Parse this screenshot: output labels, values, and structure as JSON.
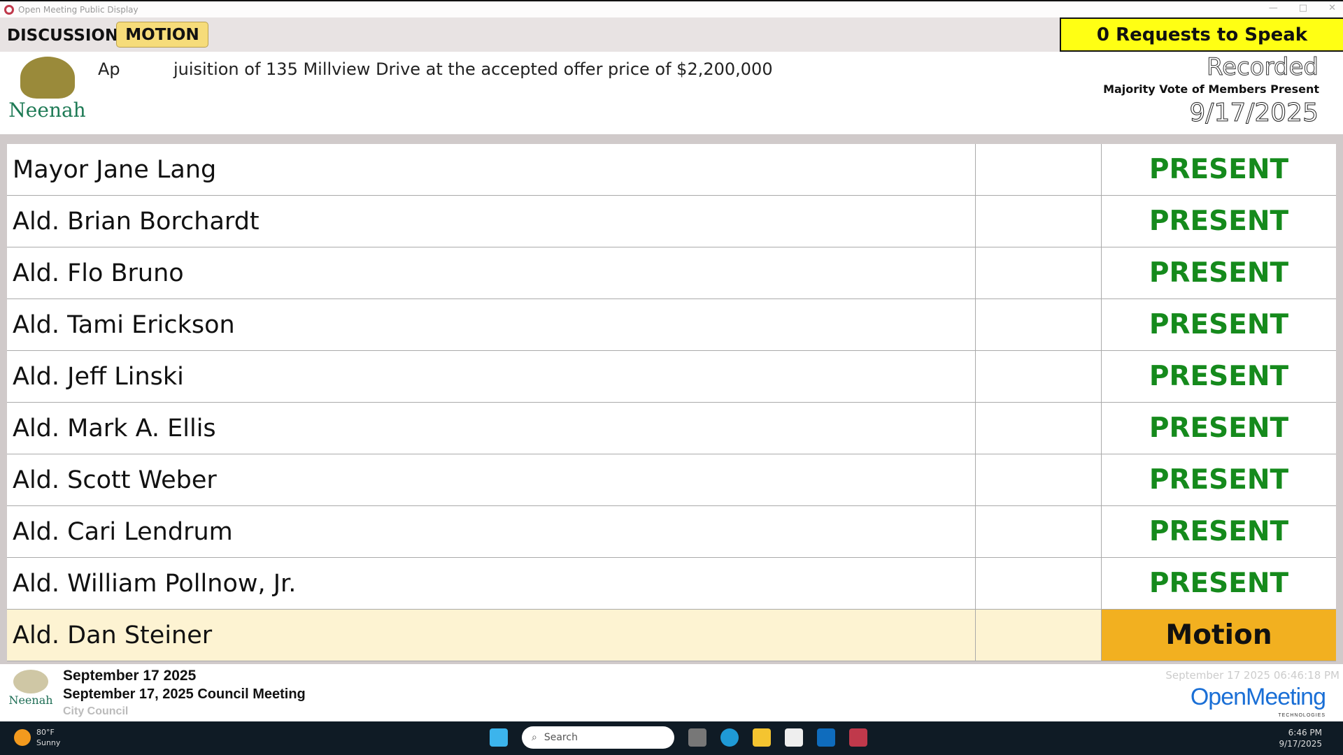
{
  "window": {
    "title": "Open Meeting Public Display"
  },
  "header": {
    "discussion_label": "DISCUSSION",
    "motion_label": "MOTION",
    "requests": "0 Requests to Speak",
    "agenda_item": "Ap          juisition of 135 Millview Drive at the accepted offer price of $2,200,000",
    "logo_text": "Neenah",
    "recorded": "Recorded",
    "vote_type": "Majority Vote of Members Present",
    "vote_date": "9/17/2025"
  },
  "members": [
    {
      "name": "Mayor Jane Lang",
      "status": "PRESENT"
    },
    {
      "name": "Ald. Brian Borchardt",
      "status": "PRESENT"
    },
    {
      "name": "Ald. Flo Bruno",
      "status": "PRESENT"
    },
    {
      "name": "Ald. Tami Erickson",
      "status": "PRESENT"
    },
    {
      "name": "Ald. Jeff Linski",
      "status": "PRESENT"
    },
    {
      "name": "Ald. Mark A. Ellis",
      "status": "PRESENT"
    },
    {
      "name": "Ald. Scott Weber",
      "status": "PRESENT"
    },
    {
      "name": "Ald. Cari Lendrum",
      "status": "PRESENT"
    },
    {
      "name": "Ald. William Pollnow, Jr.",
      "status": "PRESENT"
    },
    {
      "name": "Ald. Dan Steiner",
      "status": "Motion"
    }
  ],
  "footer": {
    "date": "September 17 2025",
    "meeting": "September 17, 2025 Council Meeting",
    "body": "City Council",
    "timestamp": "September 17 2025 06:46:18 PM",
    "brand": "OpenMeeting",
    "brand_sub": "TECHNOLOGIES",
    "logo_text": "Neenah"
  },
  "taskbar": {
    "temp": "80°F",
    "weather": "Sunny",
    "search_placeholder": "Search",
    "time": "6:46 PM",
    "date": "9/17/2025"
  },
  "colors": {
    "present": "#158a1c",
    "motion_status": "#f2b020",
    "requests_bg": "#ffff14"
  }
}
